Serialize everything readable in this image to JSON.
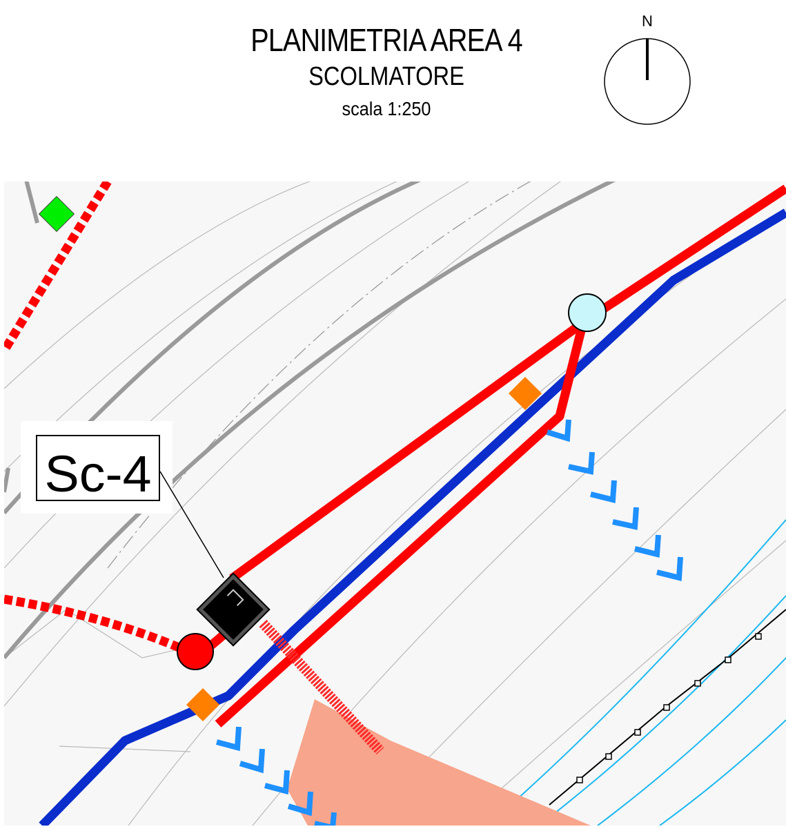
{
  "title": {
    "main": "PLANIMETRIA AREA 4",
    "sub": "SCOLMATORE",
    "scale": "scala 1:250"
  },
  "north_arrow": {
    "letter": "N"
  },
  "map": {
    "tag": "Sc-4",
    "colors": {
      "red_pipe": "#ff0000",
      "blue_pipe": "#0a2dcc",
      "manhole_red": "#ff0000",
      "node_cyan": "#c8f6fb",
      "marker_orange": "#ff7f00",
      "marker_green": "#00ee00",
      "flow_chevron": "#1e90ff",
      "area_salmon": "#f7a58c",
      "contour_gray": "#9a9a9a",
      "contour_cyan": "#1cb8f0",
      "background": "#f7f7f7"
    }
  }
}
